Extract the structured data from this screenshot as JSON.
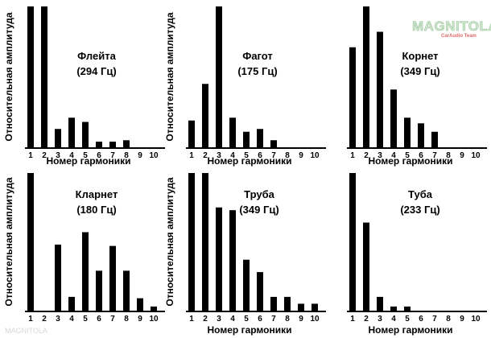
{
  "watermark": {
    "logo": "MAGNITOLA",
    "sub": "CarAudio Team",
    "footer": "MAGNITOLA"
  },
  "chart_data": [
    {
      "type": "bar",
      "title": "Флейта",
      "subtitle": "(294 Гц)",
      "xlabel": "Номер гармоники",
      "ylabel": "Относительная амплитуда",
      "categories": [
        "1",
        "2",
        "3",
        "4",
        "5",
        "6",
        "7",
        "8",
        "9",
        "10"
      ],
      "values": [
        1.0,
        1.0,
        0.13,
        0.21,
        0.18,
        0.04,
        0.04,
        0.05,
        0,
        0
      ]
    },
    {
      "type": "bar",
      "title": "Фагот",
      "subtitle": "(175 Гц)",
      "xlabel": "Номер гармоники",
      "ylabel": "Относительная амплитуда",
      "categories": [
        "1",
        "2",
        "3",
        "4",
        "5",
        "6",
        "7",
        "8",
        "9",
        "10"
      ],
      "values": [
        0.19,
        0.45,
        1.0,
        0.21,
        0.11,
        0.13,
        0.05,
        0,
        0,
        0
      ]
    },
    {
      "type": "bar",
      "title": "Корнет",
      "subtitle": "(349 Гц)",
      "xlabel": "Номер гармоники",
      "ylabel": "",
      "categories": [
        "1",
        "2",
        "3",
        "4",
        "5",
        "6",
        "7",
        "8",
        "9",
        "10"
      ],
      "values": [
        0.71,
        1.0,
        0.82,
        0.41,
        0.21,
        0.17,
        0.11,
        0,
        0,
        0
      ]
    },
    {
      "type": "bar",
      "title": "Кларнет",
      "subtitle": "(180 Гц)",
      "xlabel": "",
      "ylabel": "Относительная амплитуда",
      "categories": [
        "1",
        "2",
        "3",
        "4",
        "5",
        "6",
        "7",
        "8",
        "9",
        "10"
      ],
      "values": [
        1.0,
        0,
        0.48,
        0.1,
        0.57,
        0.29,
        0.47,
        0.29,
        0.09,
        0.03
      ]
    },
    {
      "type": "bar",
      "title": "Труба",
      "subtitle": "(349 Гц)",
      "xlabel": "Номер гармоники",
      "ylabel": "Относительная амплитуда",
      "categories": [
        "1",
        "2",
        "3",
        "4",
        "5",
        "6",
        "7",
        "8",
        "9",
        "10"
      ],
      "values": [
        1.0,
        1.0,
        0.75,
        0.73,
        0.37,
        0.28,
        0.1,
        0.1,
        0.05,
        0.05
      ]
    },
    {
      "type": "bar",
      "title": "Туба",
      "subtitle": "(233 Гц)",
      "xlabel": "Номер гармоники",
      "ylabel": "",
      "categories": [
        "1",
        "2",
        "3",
        "4",
        "5",
        "6",
        "7",
        "8",
        "9",
        "10"
      ],
      "values": [
        1.0,
        0.64,
        0.1,
        0.03,
        0.03,
        0,
        0,
        0,
        0,
        0
      ]
    }
  ]
}
